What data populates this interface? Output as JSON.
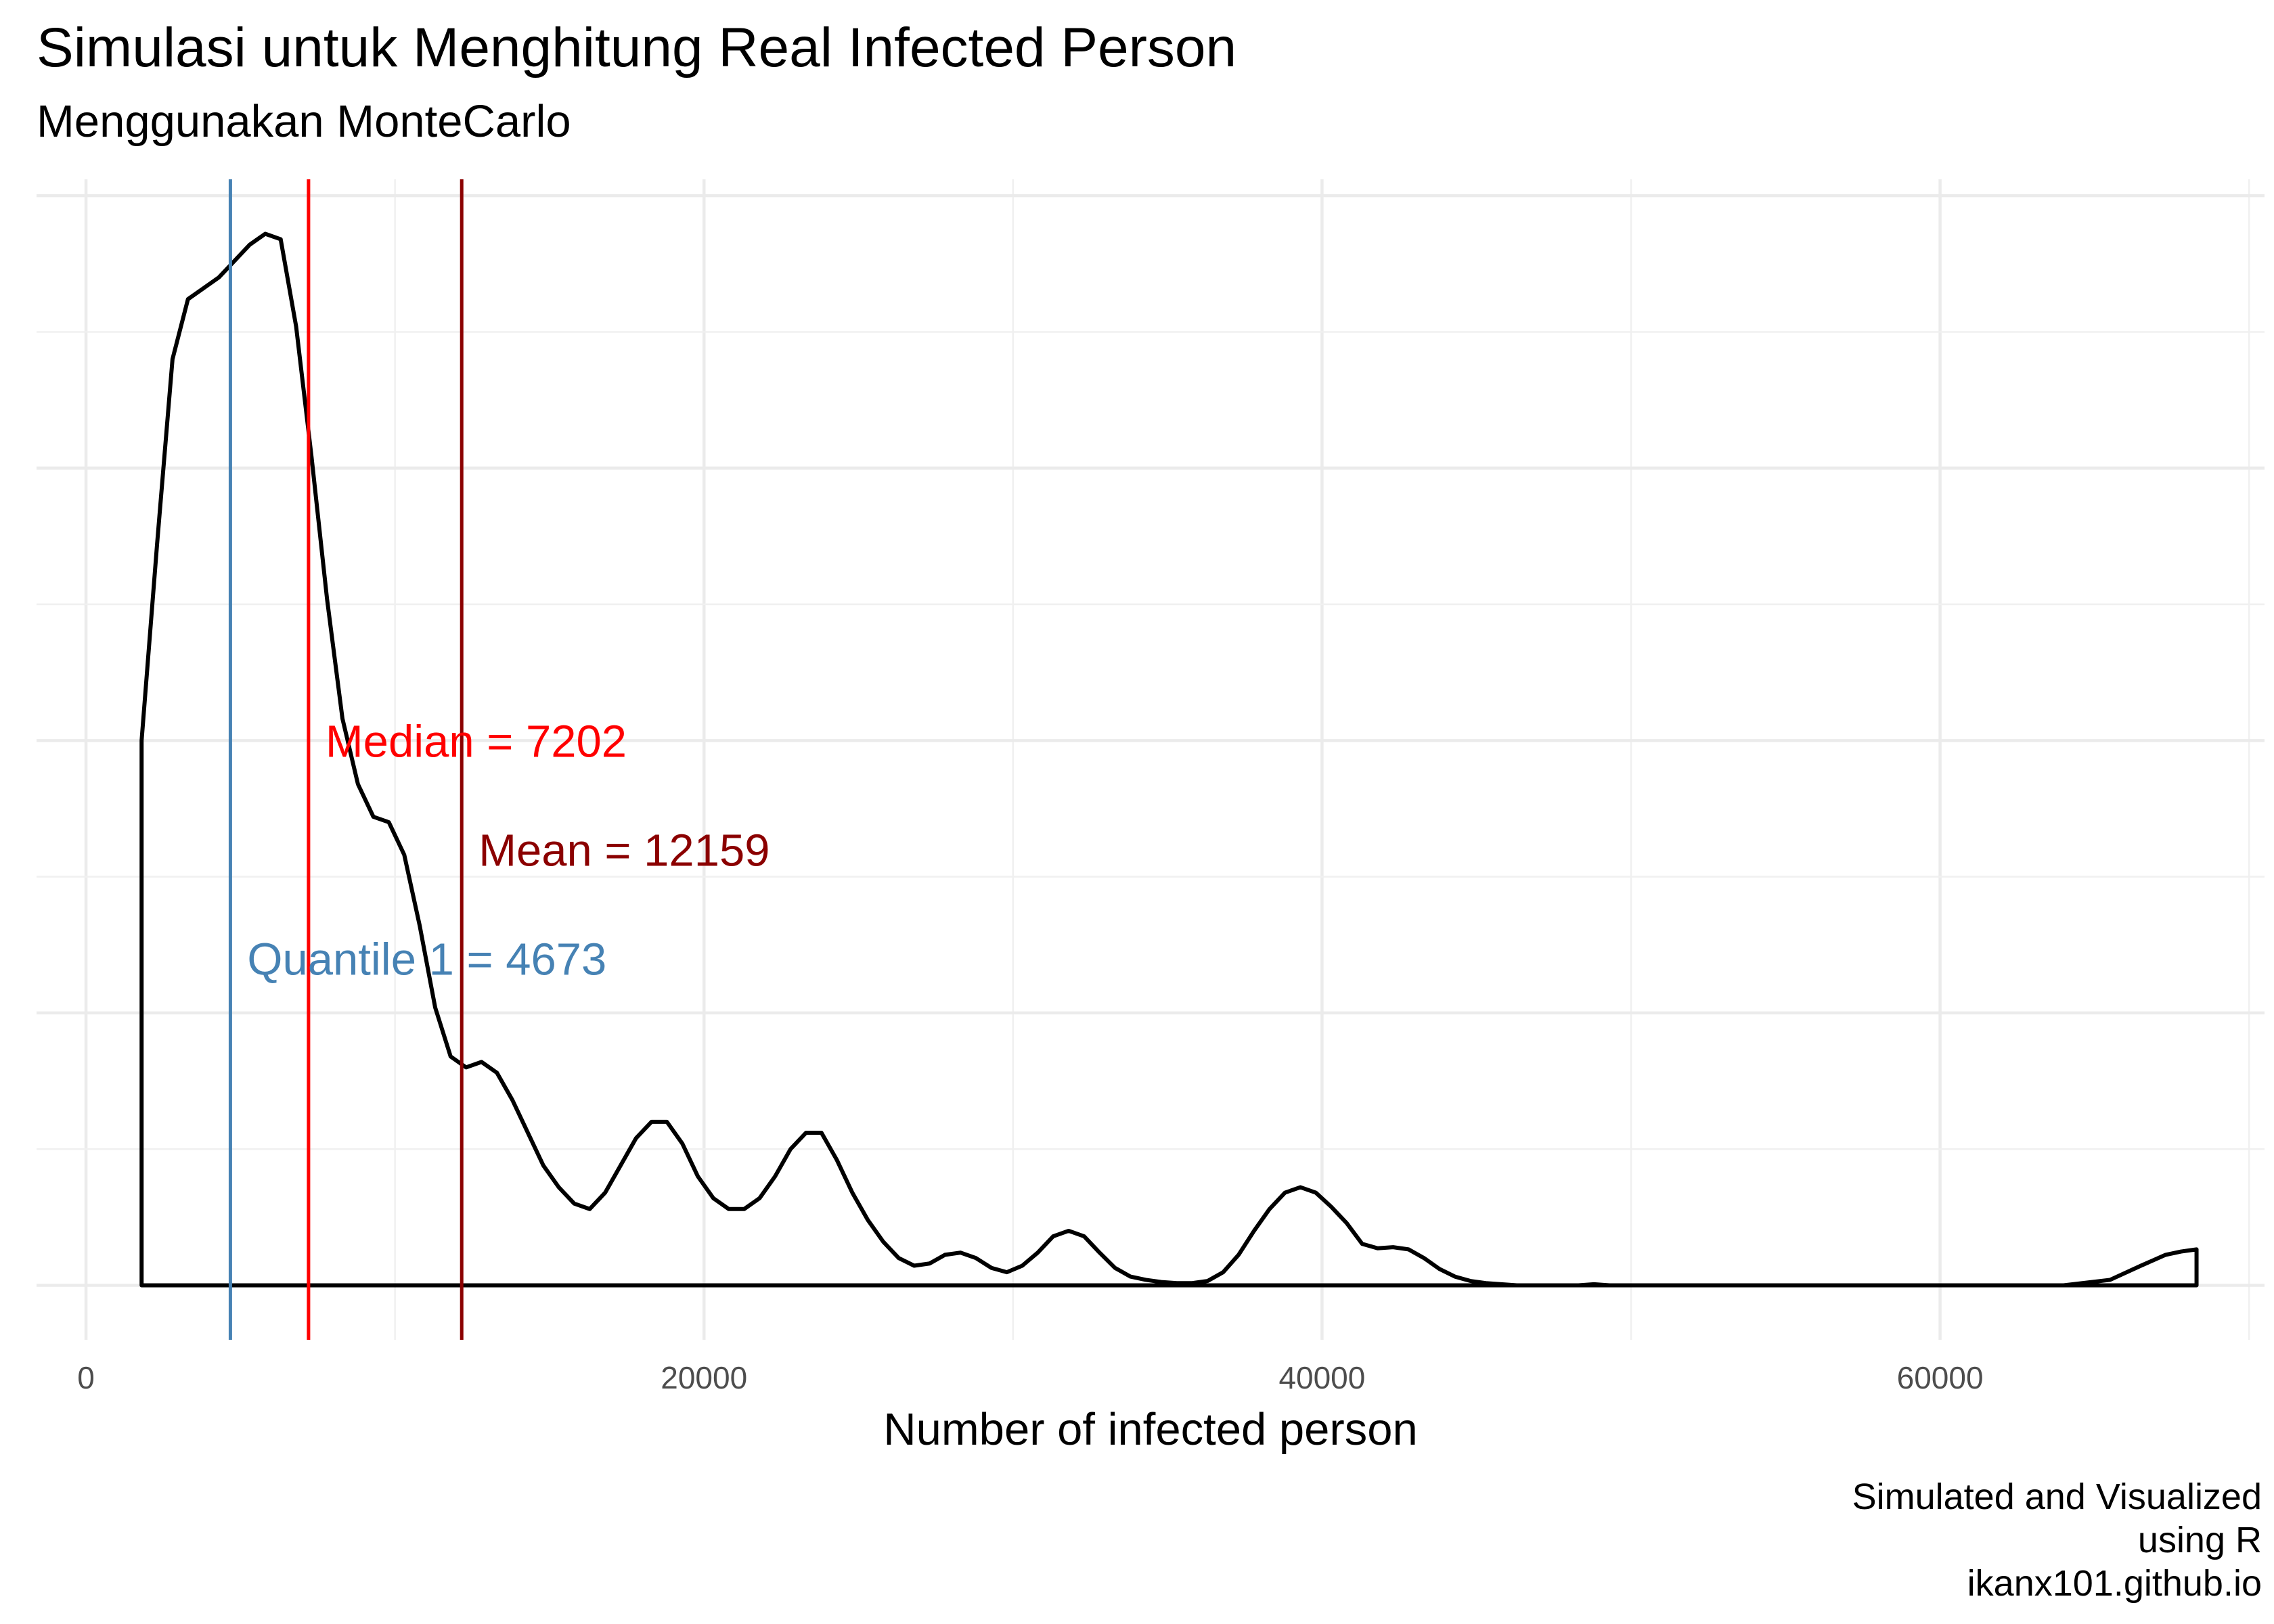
{
  "chart_data": {
    "type": "density",
    "title": "Simulasi untuk Menghitung Real Infected Person",
    "subtitle": "Menggunakan MonteCarlo",
    "xlabel": "Number of infected person",
    "ylabel": "",
    "xlim": [
      -1600,
      70500
    ],
    "ylim": [
      -0.05,
      1.015
    ],
    "x_ticks": [
      0,
      20000,
      40000,
      60000
    ],
    "x_tick_labels": [
      "0",
      "20000",
      "40000",
      "60000"
    ],
    "y_tick_labels_shown": false,
    "grid": true,
    "density_series": {
      "name": "density",
      "x": [
        1800,
        2300,
        2800,
        3300,
        3800,
        4300,
        4800,
        5300,
        5800,
        6300,
        6800,
        7300,
        7800,
        8300,
        8800,
        9300,
        9800,
        10300,
        10800,
        11300,
        11800,
        12300,
        12800,
        13300,
        13800,
        14300,
        14800,
        15300,
        15800,
        16300,
        16800,
        17300,
        17800,
        18300,
        18800,
        19300,
        19800,
        20300,
        20800,
        21300,
        21800,
        22300,
        22800,
        23300,
        23800,
        24300,
        24800,
        25300,
        25800,
        26300,
        26800,
        27300,
        27800,
        28300,
        28800,
        29300,
        29800,
        30300,
        30800,
        31300,
        31800,
        32300,
        32800,
        33300,
        33800,
        34300,
        34800,
        35300,
        35800,
        36300,
        36800,
        37300,
        37800,
        38300,
        38800,
        39300,
        39800,
        40300,
        40800,
        41300,
        41800,
        42300,
        42800,
        43300,
        43800,
        44300,
        44800,
        45300,
        45800,
        46300,
        46800,
        47300,
        47800,
        48300,
        48800,
        49300,
        49800,
        50300,
        50800,
        51300,
        51800,
        52300,
        52800,
        53300,
        53800,
        54300,
        56000,
        58000,
        60000,
        62000,
        64000,
        65500,
        66500,
        67300,
        67800,
        68300
      ],
      "y": [
        0.5,
        0.68,
        0.85,
        0.905,
        0.915,
        0.925,
        0.94,
        0.955,
        0.965,
        0.96,
        0.88,
        0.76,
        0.63,
        0.52,
        0.46,
        0.43,
        0.425,
        0.395,
        0.33,
        0.255,
        0.21,
        0.2,
        0.205,
        0.195,
        0.17,
        0.14,
        0.11,
        0.09,
        0.075,
        0.07,
        0.085,
        0.11,
        0.135,
        0.15,
        0.15,
        0.13,
        0.1,
        0.08,
        0.07,
        0.07,
        0.08,
        0.1,
        0.125,
        0.14,
        0.14,
        0.115,
        0.085,
        0.06,
        0.04,
        0.025,
        0.018,
        0.02,
        0.028,
        0.03,
        0.025,
        0.016,
        0.012,
        0.018,
        0.03,
        0.045,
        0.05,
        0.045,
        0.03,
        0.016,
        0.008,
        0.005,
        0.003,
        0.002,
        0.002,
        0.004,
        0.012,
        0.028,
        0.05,
        0.07,
        0.085,
        0.09,
        0.085,
        0.072,
        0.057,
        0.038,
        0.034,
        0.035,
        0.033,
        0.025,
        0.015,
        0.008,
        0.004,
        0.002,
        0.001,
        0.0,
        0.0,
        0.0,
        0.0,
        0.0,
        0.001,
        0.0,
        0.0,
        0.0,
        0.0,
        0.0,
        0.0,
        0.0,
        0.0,
        0.0,
        0.0,
        0.0,
        0.0,
        0.0,
        0.0,
        0.0,
        0.0,
        0.005,
        0.018,
        0.028,
        0.031,
        0.033
      ]
    },
    "reference_lines": [
      {
        "name": "Quantile 1",
        "value": 4673,
        "color": "#4682B4",
        "label": "Quantile 1 = 4673",
        "label_y": 0.3
      },
      {
        "name": "Median",
        "value": 7202,
        "color": "#FF0000",
        "label": "Median = 7202",
        "label_y": 0.5
      },
      {
        "name": "Mean",
        "value": 12159,
        "color": "#8B0000",
        "label": "Mean = 12159",
        "label_y": 0.4
      }
    ],
    "caption": [
      "Simulated and Visualized",
      "using R",
      "ikanx101.github.io"
    ]
  }
}
